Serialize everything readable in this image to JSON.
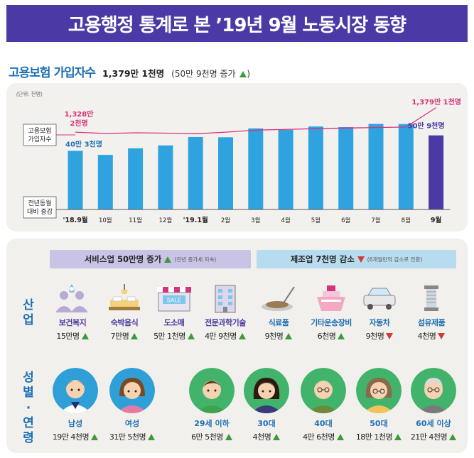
{
  "title": "고용행정 통계로 본 ’19년 9월 노동시장 동향",
  "section": {
    "title": "고용보험 가입자수",
    "value": "1,379만 1천명",
    "sub": "(50만 9천명 증가"
  },
  "chart_data": {
    "type": "bar+line",
    "unit_note": "(단위: 천명)",
    "categories": [
      "'18.9월",
      "10월",
      "11월",
      "12월",
      "'19.1월",
      "2월",
      "3월",
      "4월",
      "5월",
      "6월",
      "7월",
      "8월",
      "9월"
    ],
    "series": [
      {
        "name": "전년동월 대비 증감",
        "type": "bar",
        "values": [
          403,
          375,
          420,
          440,
          498,
          496,
          557,
          547,
          570,
          566,
          588,
          587,
          509
        ]
      },
      {
        "name": "고용보험 가입자수",
        "type": "line",
        "values": [
          13282,
          13255,
          13270,
          13262,
          13248,
          13282,
          13325,
          13340,
          13355,
          13368,
          13378,
          13389,
          13791
        ]
      }
    ],
    "labels": {
      "line_start": "1,328만 2천명",
      "line_start_1": "1,328만",
      "line_start_2": "2천명",
      "line_end": "1,379만 1천명",
      "bar_start": "40만 3천명",
      "bar_end": "50만 9천명",
      "legend_line_1": "고용보험",
      "legend_line_2": "가입자수",
      "legend_bar_1": "전년동월",
      "legend_bar_2": "대비 증감"
    },
    "colors": {
      "bar": "#2fa3df",
      "bar_last": "#4b3aa6",
      "line": "#d8327a",
      "baseline": "#555555"
    }
  },
  "bands": {
    "service": {
      "label": "서비스업 50만명 증가",
      "note": "(전년 증가세 지속)"
    },
    "manufacturing": {
      "label": "제조업 7천명 감소",
      "note": "(6개월만의 감소로 전환)"
    }
  },
  "side_labels": {
    "industry": [
      "산",
      "업"
    ],
    "gender_age": [
      "성",
      "별",
      "·",
      "연",
      "령"
    ]
  },
  "industries": [
    {
      "label": "보건복지",
      "value": "15만명",
      "trend": "up",
      "group": "service",
      "icon": "healthcare-people-icon"
    },
    {
      "label": "숙박음식",
      "value": "7만명",
      "trend": "up",
      "group": "service",
      "icon": "bed-icon"
    },
    {
      "label": "도소매",
      "value": "5만 1천명",
      "trend": "up",
      "group": "service",
      "icon": "store-icon",
      "icon_text": "SALE"
    },
    {
      "label": "전문과학기술",
      "value": "4만 9천명",
      "trend": "up",
      "group": "service",
      "icon": "building-icon"
    },
    {
      "label": "식료품",
      "value": "9천명",
      "trend": "up",
      "group": "manufacturing",
      "icon": "food-plate-icon"
    },
    {
      "label": "기타운송장비",
      "value": "6천명",
      "trend": "up",
      "group": "manufacturing",
      "icon": "ship-icon"
    },
    {
      "label": "자동차",
      "value": "9천명",
      "trend": "down",
      "group": "manufacturing",
      "icon": "car-icon"
    },
    {
      "label": "섬유제품",
      "value": "4천명",
      "trend": "down",
      "group": "manufacturing",
      "icon": "thread-spool-icon"
    }
  ],
  "people": [
    {
      "label": "남성",
      "value": "19만 4천명",
      "trend": "up",
      "icon": "male-avatar-icon"
    },
    {
      "label": "여성",
      "value": "31만 5천명",
      "trend": "up",
      "icon": "female-avatar-icon"
    },
    {
      "label": "29세 이하",
      "value": "6만 5천명",
      "trend": "up",
      "icon": "young-avatar-icon"
    },
    {
      "label": "30대",
      "value": "4천명",
      "trend": "up",
      "icon": "thirties-avatar-icon"
    },
    {
      "label": "40대",
      "value": "4만 6천명",
      "trend": "up",
      "icon": "forties-avatar-icon"
    },
    {
      "label": "50대",
      "value": "18만 1천명",
      "trend": "up",
      "icon": "fifties-avatar-icon"
    },
    {
      "label": "60세 이상",
      "value": "21만 4천명",
      "trend": "up",
      "icon": "sixties-avatar-icon"
    }
  ]
}
